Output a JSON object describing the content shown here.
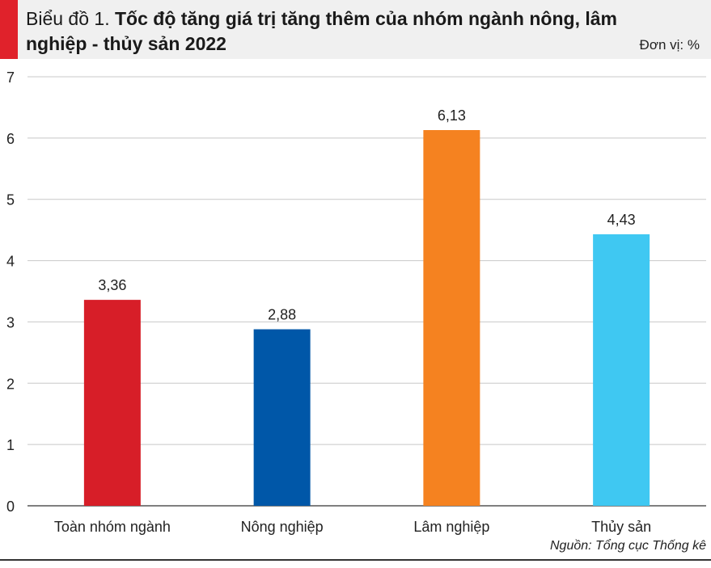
{
  "chart_data": {
    "type": "bar",
    "title_prefix": "Biểu đồ 1.",
    "title": "Tốc độ tăng giá trị tăng thêm của nhóm ngành nông, lâm nghiệp - thủy sản 2022",
    "unit": "Đơn vị: %",
    "categories": [
      "Toàn nhóm ngành",
      "Nông nghiệp",
      "Lâm nghiệp",
      "Thủy sản"
    ],
    "values": [
      3.36,
      2.88,
      6.13,
      4.43
    ],
    "value_labels": [
      "3,36",
      "2,88",
      "6,13",
      "4,43"
    ],
    "colors": [
      "#d71e28",
      "#0057a8",
      "#f58220",
      "#3fc8f2"
    ],
    "ylim": [
      0,
      7
    ],
    "yticks": [
      "0",
      "1",
      "2",
      "3",
      "4",
      "5",
      "6",
      "7"
    ],
    "grid": true,
    "xlabel": "",
    "ylabel": "",
    "source": "Nguồn: Tổng cục Thống kê"
  }
}
